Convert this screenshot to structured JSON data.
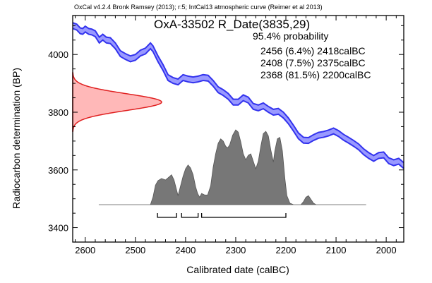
{
  "header": {
    "software_line": "OxCal v4.2.4 Bronk Ramsey (2013); r:5; IntCal13 atmospheric curve (Reimer et al 2013)"
  },
  "chart_data": {
    "type": "area",
    "title": "OxA-33502 R_Date(3835,29)",
    "probability_heading": "95.4% probability",
    "ranges": [
      {
        "label": "2456 (6.4%) 2418calBC",
        "from": 2456,
        "to": 2418
      },
      {
        "label": "2408 (7.5%) 2375calBC",
        "from": 2408,
        "to": 2375
      },
      {
        "label": "2368 (81.5%) 2200calBC",
        "from": 2368,
        "to": 2200
      }
    ],
    "xlabel": "Calibrated date (calBC)",
    "ylabel": "Radiocarbon determination (BP)",
    "x_reversed": true,
    "xlim": [
      2625,
      1965
    ],
    "ylim": [
      3350,
      4135
    ],
    "x_ticks": [
      2600,
      2500,
      2400,
      2300,
      2200,
      2100,
      2000
    ],
    "y_ticks": [
      3400,
      3600,
      3800,
      4000
    ],
    "radiocarbon_date": {
      "mean": 3835,
      "sigma": 29
    },
    "calibration_curve": {
      "name": "IntCal13",
      "color": "#3333ee",
      "fill": "#9999ff",
      "band_halfwidth": 10,
      "points": [
        [
          2625,
          4100
        ],
        [
          2617,
          4095
        ],
        [
          2610,
          4082
        ],
        [
          2605,
          4080
        ],
        [
          2600,
          4088
        ],
        [
          2593,
          4080
        ],
        [
          2587,
          4078
        ],
        [
          2580,
          4072
        ],
        [
          2572,
          4050
        ],
        [
          2565,
          4060
        ],
        [
          2558,
          4050
        ],
        [
          2550,
          4048
        ],
        [
          2540,
          4030
        ],
        [
          2530,
          4003
        ],
        [
          2520,
          3993
        ],
        [
          2510,
          3985
        ],
        [
          2500,
          3990
        ],
        [
          2490,
          4005
        ],
        [
          2480,
          4012
        ],
        [
          2470,
          4030
        ],
        [
          2465,
          4020
        ],
        [
          2455,
          3985
        ],
        [
          2445,
          3955
        ],
        [
          2435,
          3920
        ],
        [
          2425,
          3910
        ],
        [
          2415,
          3905
        ],
        [
          2405,
          3920
        ],
        [
          2395,
          3915
        ],
        [
          2385,
          3912
        ],
        [
          2375,
          3915
        ],
        [
          2365,
          3920
        ],
        [
          2355,
          3918
        ],
        [
          2345,
          3900
        ],
        [
          2335,
          3878
        ],
        [
          2325,
          3868
        ],
        [
          2315,
          3855
        ],
        [
          2305,
          3835
        ],
        [
          2295,
          3835
        ],
        [
          2285,
          3850
        ],
        [
          2275,
          3842
        ],
        [
          2265,
          3820
        ],
        [
          2255,
          3815
        ],
        [
          2245,
          3822
        ],
        [
          2235,
          3810
        ],
        [
          2225,
          3800
        ],
        [
          2215,
          3803
        ],
        [
          2205,
          3790
        ],
        [
          2195,
          3770
        ],
        [
          2185,
          3745
        ],
        [
          2175,
          3718
        ],
        [
          2165,
          3703
        ],
        [
          2155,
          3702
        ],
        [
          2145,
          3712
        ],
        [
          2135,
          3720
        ],
        [
          2125,
          3723
        ],
        [
          2115,
          3728
        ],
        [
          2105,
          3735
        ],
        [
          2095,
          3726
        ],
        [
          2085,
          3713
        ],
        [
          2075,
          3703
        ],
        [
          2065,
          3692
        ],
        [
          2055,
          3680
        ],
        [
          2045,
          3663
        ],
        [
          2035,
          3650
        ],
        [
          2025,
          3640
        ],
        [
          2015,
          3650
        ],
        [
          2005,
          3652
        ],
        [
          1995,
          3632
        ],
        [
          1985,
          3625
        ],
        [
          1975,
          3630
        ],
        [
          1965,
          3615
        ]
      ]
    },
    "probability_distribution": {
      "color": "#777777",
      "points": [
        [
          2573,
          0
        ],
        [
          2470,
          0
        ],
        [
          2465,
          0.1
        ],
        [
          2460,
          0.26
        ],
        [
          2455,
          0.32
        ],
        [
          2448,
          0.35
        ],
        [
          2440,
          0.33
        ],
        [
          2433,
          0.37
        ],
        [
          2428,
          0.4
        ],
        [
          2423,
          0.33
        ],
        [
          2418,
          0.2
        ],
        [
          2415,
          0.12
        ],
        [
          2410,
          0.25
        ],
        [
          2405,
          0.38
        ],
        [
          2400,
          0.48
        ],
        [
          2395,
          0.53
        ],
        [
          2390,
          0.49
        ],
        [
          2385,
          0.4
        ],
        [
          2380,
          0.24
        ],
        [
          2376,
          0.15
        ],
        [
          2372,
          0.1
        ],
        [
          2368,
          0.15
        ],
        [
          2362,
          0.13
        ],
        [
          2356,
          0.13
        ],
        [
          2350,
          0.25
        ],
        [
          2345,
          0.5
        ],
        [
          2340,
          0.68
        ],
        [
          2335,
          0.82
        ],
        [
          2330,
          0.88
        ],
        [
          2325,
          0.85
        ],
        [
          2320,
          0.78
        ],
        [
          2316,
          0.76
        ],
        [
          2312,
          0.8
        ],
        [
          2306,
          0.93
        ],
        [
          2300,
          1.0
        ],
        [
          2295,
          0.97
        ],
        [
          2290,
          0.84
        ],
        [
          2285,
          0.68
        ],
        [
          2280,
          0.6
        ],
        [
          2275,
          0.66
        ],
        [
          2270,
          0.68
        ],
        [
          2265,
          0.58
        ],
        [
          2260,
          0.48
        ],
        [
          2255,
          0.58
        ],
        [
          2250,
          0.78
        ],
        [
          2245,
          0.95
        ],
        [
          2240,
          0.98
        ],
        [
          2235,
          0.92
        ],
        [
          2230,
          0.73
        ],
        [
          2225,
          0.57
        ],
        [
          2222,
          0.72
        ],
        [
          2217,
          0.88
        ],
        [
          2212,
          0.9
        ],
        [
          2207,
          0.72
        ],
        [
          2202,
          0.35
        ],
        [
          2198,
          0.12
        ],
        [
          2192,
          0.02
        ],
        [
          2185,
          0
        ],
        [
          2170,
          0
        ],
        [
          2165,
          0.04
        ],
        [
          2160,
          0.1
        ],
        [
          2155,
          0.12
        ],
        [
          2150,
          0.07
        ],
        [
          2145,
          0.02
        ],
        [
          2140,
          0
        ],
        [
          2040,
          0
        ]
      ]
    }
  }
}
